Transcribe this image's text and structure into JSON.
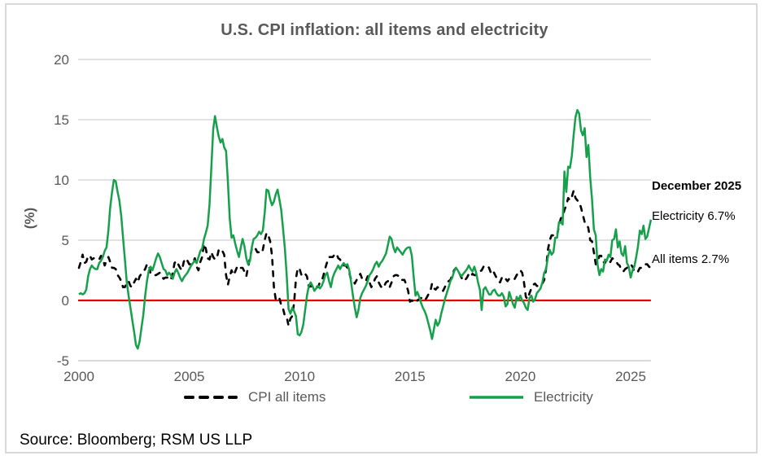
{
  "chart": {
    "title": "U.S. CPI inflation: all items and electricity",
    "y_axis_title": "(%)",
    "annotations": {
      "heading": "December 2025",
      "electricity": "Electricity 6.7%",
      "all_items": "All items 2.7%"
    },
    "legend": {
      "cpi_label": "CPI all items",
      "electricity_label": "Electricity"
    },
    "source": "Source: Bloomberg; RSM US LLP",
    "colors": {
      "electricity_line": "#17a04b",
      "cpi_line": "#000000",
      "zero_line": "#e60000",
      "gridline": "#d9d9d9",
      "text_gray": "#595959"
    }
  },
  "chart_data": {
    "type": "line",
    "title": "U.S. CPI inflation: all items and electricity",
    "xlabel": "",
    "ylabel": "(%)",
    "ylim": [
      -5,
      20
    ],
    "y_ticks": [
      20,
      15,
      10,
      5,
      0,
      -5
    ],
    "x_ticks": [
      2000,
      2005,
      2010,
      2015,
      2020,
      2025
    ],
    "x_start_year": 2000,
    "frequency": "monthly",
    "grid": "horizontal-only",
    "legend_position": "bottom",
    "series": [
      {
        "name": "CPI all items",
        "color": "#000000",
        "style": "dashed",
        "last_point": {
          "label": "December 2025",
          "value": 2.7
        },
        "values": [
          2.7,
          3.2,
          3.8,
          3.1,
          3.2,
          3.7,
          3.7,
          3.4,
          3.5,
          3.4,
          3.4,
          3.4,
          3.7,
          3.5,
          2.9,
          3.3,
          3.6,
          3.2,
          2.7,
          2.7,
          2.6,
          2.1,
          1.9,
          1.6,
          1.1,
          1.1,
          1.5,
          1.6,
          1.2,
          1.1,
          1.5,
          1.8,
          1.5,
          2.0,
          2.2,
          2.4,
          2.6,
          3.0,
          3.0,
          2.2,
          2.1,
          2.1,
          2.1,
          2.2,
          2.3,
          2.0,
          1.8,
          1.9,
          1.9,
          1.7,
          1.7,
          2.3,
          3.1,
          3.3,
          3.0,
          2.7,
          2.5,
          3.2,
          3.5,
          3.3,
          3.0,
          3.0,
          3.1,
          3.5,
          2.8,
          2.5,
          3.2,
          3.6,
          4.7,
          4.3,
          3.5,
          3.4,
          4.0,
          3.6,
          3.4,
          3.5,
          4.2,
          4.3,
          4.1,
          3.8,
          2.1,
          1.3,
          2.0,
          2.5,
          2.1,
          2.4,
          2.8,
          2.6,
          2.7,
          2.7,
          2.4,
          2.0,
          2.8,
          3.5,
          4.3,
          4.1,
          4.3,
          4.0,
          4.0,
          3.9,
          4.2,
          5.0,
          5.6,
          5.4,
          4.9,
          3.7,
          1.1,
          0.1,
          0.0,
          0.2,
          -0.4,
          -0.7,
          -1.3,
          -1.4,
          -2.1,
          -1.5,
          -1.3,
          -0.2,
          1.8,
          2.7,
          2.6,
          2.1,
          2.3,
          2.2,
          2.0,
          1.1,
          1.2,
          1.1,
          1.1,
          1.2,
          1.1,
          1.5,
          1.6,
          2.1,
          2.7,
          3.2,
          3.6,
          3.6,
          3.6,
          3.8,
          3.9,
          3.5,
          3.4,
          3.0,
          2.9,
          2.9,
          2.7,
          2.3,
          1.7,
          1.7,
          1.4,
          1.7,
          2.0,
          2.2,
          1.8,
          1.7,
          1.6,
          2.0,
          1.5,
          1.1,
          1.4,
          1.8,
          2.0,
          1.5,
          1.2,
          1.0,
          1.2,
          1.5,
          1.6,
          1.1,
          1.5,
          2.0,
          2.1,
          2.1,
          2.0,
          1.7,
          1.7,
          1.7,
          1.3,
          0.8,
          -0.1,
          0.0,
          -0.1,
          -0.2,
          0.0,
          0.1,
          0.2,
          0.2,
          0.0,
          0.2,
          0.5,
          0.7,
          1.4,
          1.0,
          0.9,
          1.1,
          1.0,
          1.0,
          0.8,
          1.1,
          1.5,
          1.6,
          1.7,
          2.1,
          2.5,
          2.7,
          2.4,
          2.2,
          1.9,
          1.6,
          1.7,
          1.9,
          2.2,
          2.0,
          2.2,
          2.1,
          2.1,
          2.2,
          2.4,
          2.5,
          2.8,
          2.9,
          2.9,
          2.7,
          2.3,
          2.5,
          2.2,
          1.9,
          1.6,
          1.5,
          1.9,
          2.0,
          1.8,
          1.6,
          1.8,
          1.7,
          1.7,
          1.8,
          2.1,
          2.3,
          2.5,
          2.3,
          1.5,
          0.3,
          0.1,
          0.6,
          1.0,
          1.3,
          1.4,
          1.2,
          1.2,
          1.4,
          1.4,
          1.7,
          2.6,
          4.2,
          5.0,
          5.4,
          5.4,
          5.3,
          5.4,
          6.2,
          6.8,
          7.0,
          7.5,
          7.9,
          8.5,
          8.3,
          8.6,
          9.1,
          8.5,
          8.3,
          8.2,
          7.7,
          7.1,
          6.5,
          6.4,
          6.0,
          5.0,
          4.9,
          4.0,
          3.0,
          3.2,
          3.7,
          3.7,
          3.2,
          3.1,
          3.4,
          3.1,
          3.2,
          3.5,
          3.4,
          3.3,
          3.0,
          2.9,
          2.5,
          2.4,
          2.6,
          2.7,
          2.9,
          3.0,
          2.8,
          2.4,
          2.3,
          2.4,
          2.7,
          2.7,
          2.9,
          3.0,
          3.0,
          2.8,
          2.7
        ]
      },
      {
        "name": "Electricity",
        "color": "#17a04b",
        "style": "solid",
        "last_point": {
          "label": "December 2025",
          "value": 6.7
        },
        "values": [
          0.5,
          0.6,
          0.5,
          0.6,
          0.9,
          2.0,
          2.6,
          2.9,
          2.7,
          2.6,
          2.6,
          3.1,
          3.3,
          3.6,
          4.1,
          4.4,
          5.8,
          7.7,
          9.0,
          10.0,
          9.9,
          9.0,
          8.3,
          7.0,
          5.2,
          3.4,
          1.5,
          0.4,
          -0.6,
          -1.6,
          -2.6,
          -3.7,
          -4.0,
          -3.4,
          -2.3,
          -1.2,
          0.4,
          1.6,
          2.5,
          2.8,
          2.5,
          3.0,
          3.5,
          3.9,
          3.6,
          3.1,
          2.6,
          2.5,
          2.1,
          2.3,
          2.1,
          1.8,
          2.3,
          2.6,
          2.3,
          1.9,
          1.6,
          1.9,
          2.1,
          2.3,
          2.6,
          2.9,
          3.1,
          3.3,
          3.1,
          3.6,
          4.1,
          4.3,
          5.1,
          5.6,
          6.2,
          8.0,
          11.0,
          14.2,
          15.3,
          14.4,
          13.6,
          13.1,
          13.4,
          12.7,
          12.4,
          9.8,
          6.8,
          5.2,
          5.4,
          4.7,
          4.1,
          3.6,
          4.4,
          5.1,
          4.5,
          3.5,
          3.0,
          3.3,
          4.4,
          5.1,
          5.2,
          5.4,
          5.7,
          5.5,
          5.8,
          7.3,
          9.2,
          9.1,
          8.4,
          7.9,
          8.2,
          8.8,
          9.2,
          8.4,
          7.5,
          5.9,
          4.3,
          2.0,
          -0.7,
          -1.1,
          -0.6,
          -0.9,
          -1.3,
          -2.8,
          -2.9,
          -2.6,
          -2.0,
          -0.8,
          0.4,
          1.2,
          1.5,
          1.2,
          0.8,
          1.0,
          1.2,
          1.0,
          1.2,
          1.6,
          2.1,
          2.3,
          1.6,
          1.1,
          1.9,
          2.3,
          2.6,
          2.9,
          2.6,
          2.9,
          3.1,
          2.9,
          3.0,
          2.5,
          1.5,
          0.4,
          -0.6,
          -1.4,
          -0.8,
          0.2,
          0.6,
          0.9,
          1.2,
          1.6,
          2.1,
          2.3,
          2.6,
          3.0,
          3.2,
          2.8,
          3.1,
          3.3,
          3.6,
          3.9,
          4.6,
          5.3,
          5.1,
          4.4,
          4.0,
          4.4,
          4.2,
          4.0,
          3.8,
          4.1,
          4.3,
          4.4,
          4.4,
          3.7,
          2.0,
          0.4,
          0.7,
          0.3,
          -0.2,
          -0.6,
          -0.9,
          -1.3,
          -1.9,
          -2.5,
          -3.2,
          -2.4,
          -1.6,
          -2.1,
          -1.8,
          -1.1,
          -0.5,
          0.1,
          0.6,
          1.1,
          1.6,
          1.9,
          2.4,
          2.7,
          2.5,
          2.2,
          2.0,
          2.2,
          2.4,
          2.6,
          2.9,
          2.6,
          2.4,
          2.8,
          2.3,
          1.5,
          0.9,
          -0.8,
          0.9,
          1.1,
          0.8,
          0.5,
          0.5,
          0.8,
          0.9,
          0.6,
          0.4,
          0.4,
          0.6,
          0.3,
          -0.5,
          -0.3,
          0.7,
          0.2,
          -0.3,
          -0.6,
          0.3,
          0.0,
          0.4,
          0.0,
          -0.2,
          -0.6,
          -0.8,
          0.2,
          0.4,
          -0.1,
          0.1,
          0.6,
          0.8,
          1.0,
          1.5,
          2.3,
          2.6,
          3.6,
          4.2,
          3.8,
          4.0,
          5.2,
          5.2,
          6.5,
          6.5,
          6.3,
          10.7,
          9.0,
          11.1,
          11.0,
          12.0,
          13.7,
          15.2,
          15.8,
          15.5,
          14.1,
          13.7,
          14.3,
          11.9,
          12.9,
          10.2,
          8.4,
          5.9,
          5.4,
          3.0,
          2.1,
          2.6,
          2.4,
          3.4,
          3.3,
          3.8,
          3.6,
          5.0,
          5.1,
          5.9,
          4.4,
          4.9,
          3.9,
          3.7,
          4.5,
          3.1,
          2.8,
          1.9,
          2.5,
          2.8,
          3.6,
          4.5,
          5.8,
          5.5,
          6.2,
          5.1,
          5.3,
          6.0,
          6.7
        ]
      }
    ]
  }
}
